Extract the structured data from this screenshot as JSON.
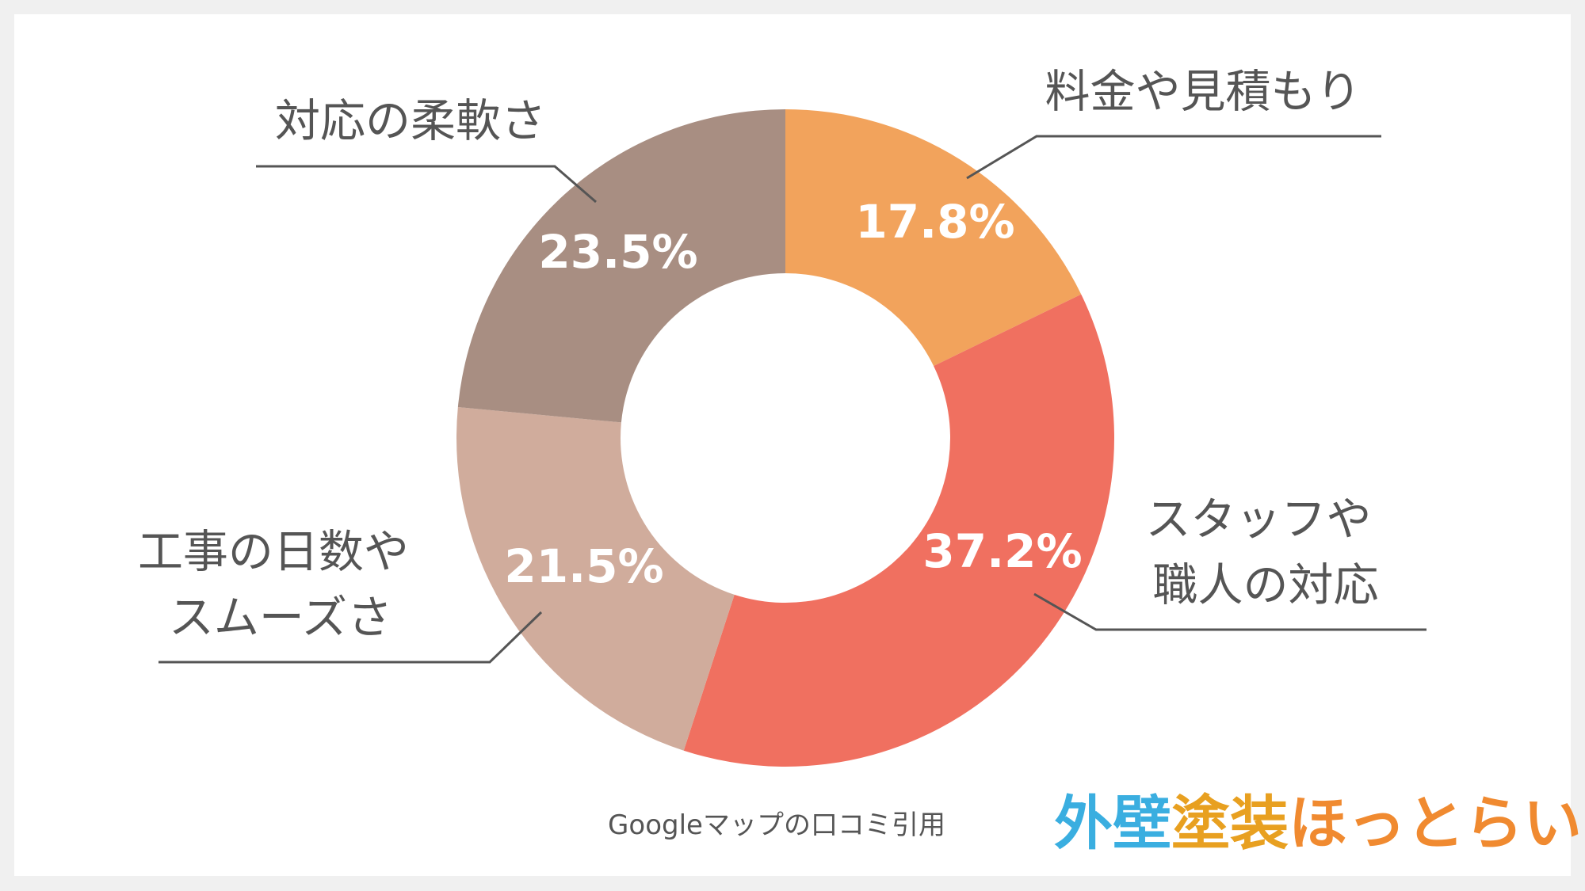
{
  "chart_data": {
    "type": "donut",
    "slices": [
      {
        "label": "料金や見積もり",
        "value": 17.8,
        "value_label": "17.8%",
        "color": "#f2a35c"
      },
      {
        "label": "スタッフや\n職人の対応",
        "value": 37.2,
        "value_label": "37.2%",
        "color": "#f07060"
      },
      {
        "label": "工事の日数や\nスムーズさ",
        "value": 21.5,
        "value_label": "21.5%",
        "color": "#d0ac9c"
      },
      {
        "label": "対応の柔軟さ",
        "value": 23.5,
        "value_label": "23.5%",
        "color": "#a88e82"
      }
    ],
    "start_angle": "12 o'clock",
    "direction": "clockwise"
  },
  "caption": "Googleマップの口コミ引用",
  "logo": {
    "text": "外壁塗装ほっとらいん",
    "part1": "外壁",
    "part2": "塗装",
    "part3": "ほっとらいん",
    "color1": "#3aaee0",
    "color2": "#e8a020",
    "color3": "#f08a30"
  },
  "colors": {
    "background": "#ffffff",
    "border": "#f0f0f0",
    "text": "#555555",
    "value_text": "#ffffff"
  }
}
